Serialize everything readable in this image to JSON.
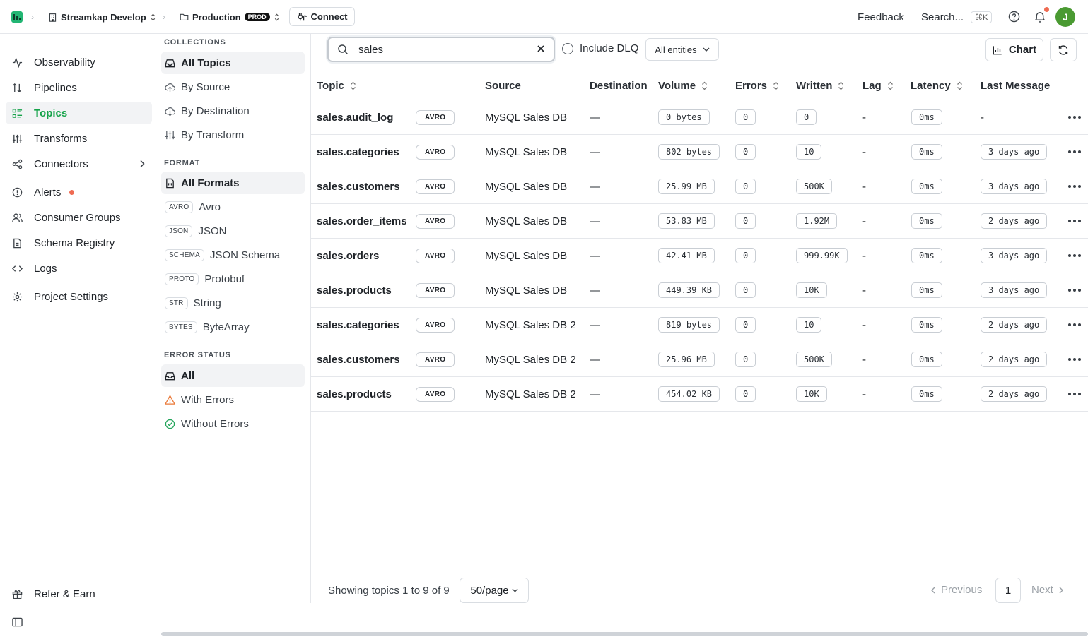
{
  "topbar": {
    "org": "Streamkap Develop",
    "environment": "Production",
    "environment_badge": "PROD",
    "connect_label": "Connect",
    "feedback_label": "Feedback",
    "search_label": "Search...",
    "search_shortcut": "⌘K",
    "user_initial": "J"
  },
  "nav": {
    "items": [
      {
        "label": "Observability",
        "icon": "activity-icon"
      },
      {
        "label": "Pipelines",
        "icon": "arrows-updown-icon"
      },
      {
        "label": "Topics",
        "icon": "list-icon",
        "active": true
      },
      {
        "label": "Transforms",
        "icon": "sliders-icon"
      },
      {
        "label": "Connectors",
        "icon": "share-icon"
      },
      {
        "label": "Alerts",
        "icon": "alert-circle-icon"
      },
      {
        "label": "Consumer Groups",
        "icon": "users-icon"
      },
      {
        "label": "Schema Registry",
        "icon": "file-icon"
      },
      {
        "label": "Logs",
        "icon": "code-icon"
      },
      {
        "label": "Project Settings",
        "icon": "gear-icon"
      }
    ],
    "refer_label": "Refer & Earn"
  },
  "filters": {
    "collections_heading": "COLLECTIONS",
    "collections": [
      "All Topics",
      "By Source",
      "By Destination",
      "By Transform"
    ],
    "format_heading": "FORMAT",
    "all_formats": "All Formats",
    "formats": [
      {
        "tag": "AVRO",
        "label": "Avro"
      },
      {
        "tag": "JSON",
        "label": "JSON"
      },
      {
        "tag": "SCHEMA",
        "label": "JSON Schema"
      },
      {
        "tag": "PROTO",
        "label": "Protobuf"
      },
      {
        "tag": "STR",
        "label": "String"
      },
      {
        "tag": "BYTES",
        "label": "ByteArray"
      }
    ],
    "error_heading": "ERROR STATUS",
    "error_statuses": [
      "All",
      "With Errors",
      "Without Errors"
    ]
  },
  "toolbar": {
    "search_value": "sales",
    "include_dlq_label": "Include DLQ",
    "entities_label": "All entities",
    "chart_label": "Chart"
  },
  "table": {
    "columns": [
      "Topic",
      "Source",
      "Destination",
      "Volume",
      "Errors",
      "Written",
      "Lag",
      "Latency",
      "Last Message"
    ],
    "rows": [
      {
        "topic": "sales.audit_log",
        "format": "AVRO",
        "source": "MySQL Sales DB",
        "destination": "—",
        "volume": "0 bytes",
        "errors": "0",
        "written": "0",
        "lag": "-",
        "latency": "0ms",
        "last_message": "-"
      },
      {
        "topic": "sales.categories",
        "format": "AVRO",
        "source": "MySQL Sales DB",
        "destination": "—",
        "volume": "802 bytes",
        "errors": "0",
        "written": "10",
        "lag": "-",
        "latency": "0ms",
        "last_message": "3 days ago"
      },
      {
        "topic": "sales.customers",
        "format": "AVRO",
        "source": "MySQL Sales DB",
        "destination": "—",
        "volume": "25.99 MB",
        "errors": "0",
        "written": "500K",
        "lag": "-",
        "latency": "0ms",
        "last_message": "3 days ago"
      },
      {
        "topic": "sales.order_items",
        "format": "AVRO",
        "source": "MySQL Sales DB",
        "destination": "—",
        "volume": "53.83 MB",
        "errors": "0",
        "written": "1.92M",
        "lag": "-",
        "latency": "0ms",
        "last_message": "2 days ago"
      },
      {
        "topic": "sales.orders",
        "format": "AVRO",
        "source": "MySQL Sales DB",
        "destination": "—",
        "volume": "42.41 MB",
        "errors": "0",
        "written": "999.99K",
        "lag": "-",
        "latency": "0ms",
        "last_message": "3 days ago"
      },
      {
        "topic": "sales.products",
        "format": "AVRO",
        "source": "MySQL Sales DB",
        "destination": "—",
        "volume": "449.39 KB",
        "errors": "0",
        "written": "10K",
        "lag": "-",
        "latency": "0ms",
        "last_message": "3 days ago"
      },
      {
        "topic": "sales.categories",
        "format": "AVRO",
        "source": "MySQL Sales DB 2",
        "destination": "—",
        "volume": "819 bytes",
        "errors": "0",
        "written": "10",
        "lag": "-",
        "latency": "0ms",
        "last_message": "2 days ago"
      },
      {
        "topic": "sales.customers",
        "format": "AVRO",
        "source": "MySQL Sales DB 2",
        "destination": "—",
        "volume": "25.96 MB",
        "errors": "0",
        "written": "500K",
        "lag": "-",
        "latency": "0ms",
        "last_message": "2 days ago"
      },
      {
        "topic": "sales.products",
        "format": "AVRO",
        "source": "MySQL Sales DB 2",
        "destination": "—",
        "volume": "454.02 KB",
        "errors": "0",
        "written": "10K",
        "lag": "-",
        "latency": "0ms",
        "last_message": "2 days ago"
      }
    ]
  },
  "footer": {
    "showing_text": "Showing topics 1 to 9 of 9",
    "per_page": "50/page",
    "previous_label": "Previous",
    "page": "1",
    "next_label": "Next"
  },
  "colors": {
    "accent": "#16a34a",
    "alert_dot": "#ef6b52",
    "avatar": "#4a9a32"
  }
}
